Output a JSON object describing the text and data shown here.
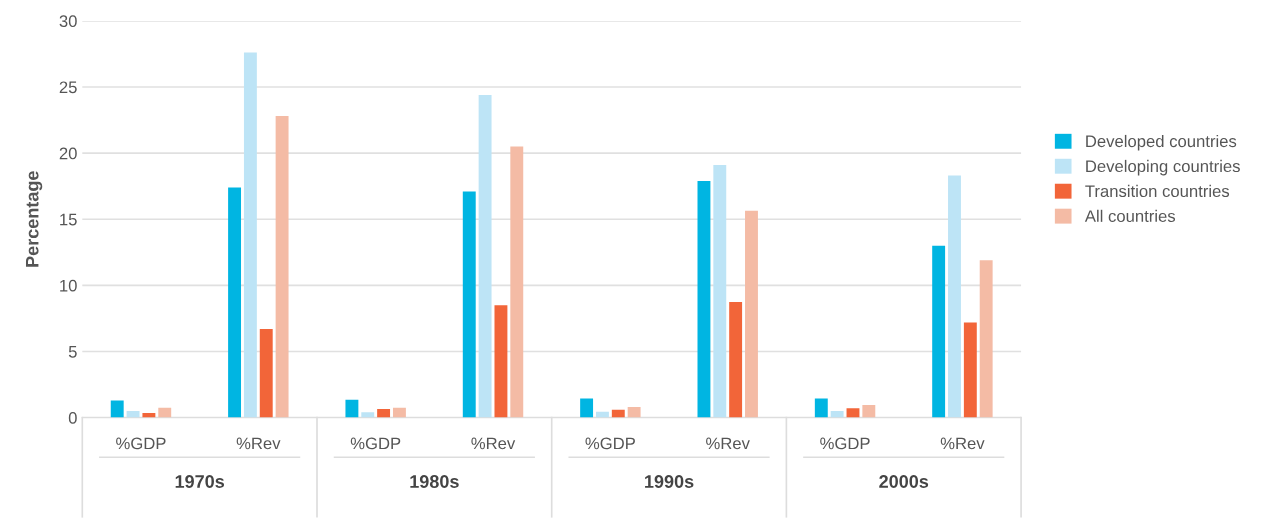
{
  "chart_data": {
    "type": "bar",
    "ylabel": "Percentage",
    "categories": [
      "%GDP",
      "%Rev",
      "%GDP",
      "%Rev",
      "%GDP",
      "%Rev",
      "%GDP",
      "%Rev"
    ],
    "annotations": [
      "1970s",
      "1980s",
      "1990s",
      "2000s"
    ],
    "series": [
      {
        "name": "Developed countries",
        "color": "#00b5e2",
        "values": [
          1.3,
          17.4,
          1.35,
          17.1,
          1.45,
          17.9,
          1.45,
          13.0
        ]
      },
      {
        "name": "Developing countries",
        "color": "#bde4f6",
        "values": [
          0.5,
          27.6,
          0.4,
          24.4,
          0.45,
          19.1,
          0.5,
          18.3
        ]
      },
      {
        "name": "Transition countries",
        "color": "#f26539",
        "values": [
          0.35,
          6.7,
          0.65,
          8.5,
          0.6,
          8.75,
          0.7,
          7.2
        ]
      },
      {
        "name": "All countries",
        "color": "#f4bba5",
        "values": [
          0.75,
          22.8,
          0.75,
          20.5,
          0.8,
          15.65,
          0.95,
          11.9
        ]
      }
    ],
    "ylim": [
      0,
      30
    ],
    "yticks": [
      0,
      5,
      10,
      15,
      20,
      25,
      30
    ],
    "grid": "y",
    "legend": "right"
  }
}
